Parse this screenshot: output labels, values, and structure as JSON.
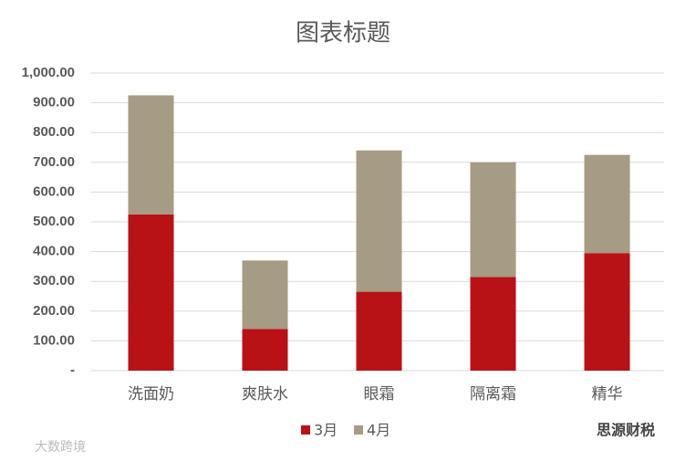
{
  "chart_data": {
    "type": "stacked_bar",
    "title": "图表标题",
    "categories": [
      "洗面奶",
      "爽肤水",
      "眼霜",
      "隔离霜",
      "精华"
    ],
    "series": [
      {
        "name": "3月",
        "color": "#b81216",
        "values": [
          525,
          140,
          265,
          315,
          395
        ]
      },
      {
        "name": "4月",
        "color": "#a69b84",
        "values": [
          400,
          230,
          475,
          385,
          330
        ]
      }
    ],
    "ylim": [
      0,
      1000
    ],
    "yticks": [
      {
        "value": 0,
        "label": "-"
      },
      {
        "value": 100,
        "label": "100.00"
      },
      {
        "value": 200,
        "label": "200.00"
      },
      {
        "value": 300,
        "label": "300.00"
      },
      {
        "value": 400,
        "label": "400.00"
      },
      {
        "value": 500,
        "label": "500.00"
      },
      {
        "value": 600,
        "label": "600.00"
      },
      {
        "value": 700,
        "label": "700.00"
      },
      {
        "value": 800,
        "label": "800.00"
      },
      {
        "value": 900,
        "label": "900.00"
      },
      {
        "value": 1000,
        "label": "1,000.00"
      }
    ],
    "grid": true,
    "legend": "bottom",
    "annotations": [
      "大数跨境",
      "思源财税"
    ]
  }
}
